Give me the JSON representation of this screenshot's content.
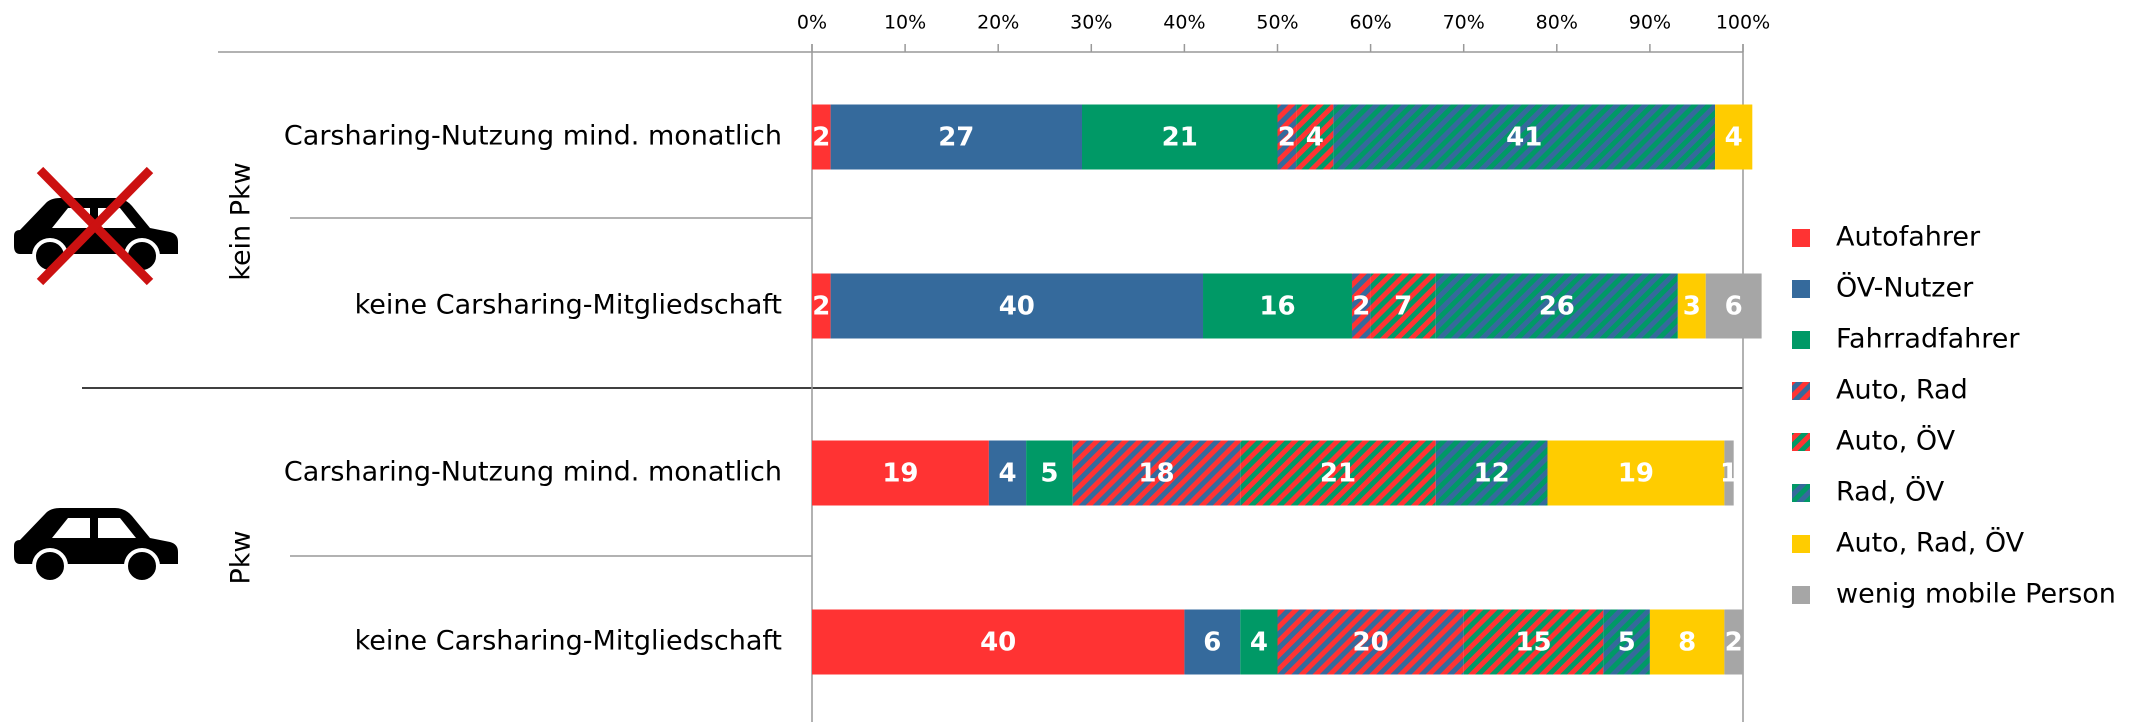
{
  "chart_data": {
    "type": "stacked-barh",
    "groups": [
      {
        "label": "kein Pkw",
        "rows": [
          0,
          1
        ]
      },
      {
        "label": "Pkw",
        "rows": [
          2,
          3
        ]
      }
    ],
    "categories": [
      "Carsharing-Nutzung mind. monatlich",
      "keine Carsharing-Mitgliedschaft",
      "Carsharing-Nutzung mind. monatlich",
      "keine Carsharing-Mitgliedschaft"
    ],
    "series": [
      {
        "name": "Autofahrer",
        "color": "#ff3333",
        "values": [
          2,
          2,
          19,
          40
        ]
      },
      {
        "name": "ÖV-Nutzer",
        "color": "#356a9c",
        "values": [
          27,
          40,
          4,
          6
        ]
      },
      {
        "name": "Fahrradfahrer",
        "color": "#009966",
        "values": [
          21,
          16,
          5,
          4
        ]
      },
      {
        "name": "Auto, Rad",
        "color": "#ff3333",
        "hatch": "#356a9c",
        "values": [
          2,
          2,
          18,
          20
        ]
      },
      {
        "name": "Auto, ÖV",
        "color": "#ff3333",
        "hatch": "#009966",
        "values": [
          4,
          7,
          21,
          15
        ]
      },
      {
        "name": "Rad, ÖV",
        "color": "#356a9c",
        "hatch": "#009966",
        "values": [
          41,
          26,
          12,
          5
        ]
      },
      {
        "name": "Auto, Rad, ÖV",
        "color": "#ffcc00",
        "values": [
          4,
          3,
          19,
          8
        ]
      },
      {
        "name": "wenig mobile Person",
        "color": "#a6a6a6",
        "values": [
          null,
          6,
          1,
          2
        ]
      }
    ],
    "xlim": [
      0,
      100
    ],
    "xticks": [
      {
        "value": 0,
        "label": "0%"
      },
      {
        "value": 10,
        "label": "10%"
      },
      {
        "value": 20,
        "label": "20%"
      },
      {
        "value": 30,
        "label": "30%"
      },
      {
        "value": 40,
        "label": "40%"
      },
      {
        "value": 50,
        "label": "50%"
      },
      {
        "value": 60,
        "label": "60%"
      },
      {
        "value": 70,
        "label": "70%"
      },
      {
        "value": 80,
        "label": "80%"
      },
      {
        "value": 90,
        "label": "90%"
      },
      {
        "value": 100,
        "label": "100%"
      }
    ],
    "legend": "right"
  }
}
